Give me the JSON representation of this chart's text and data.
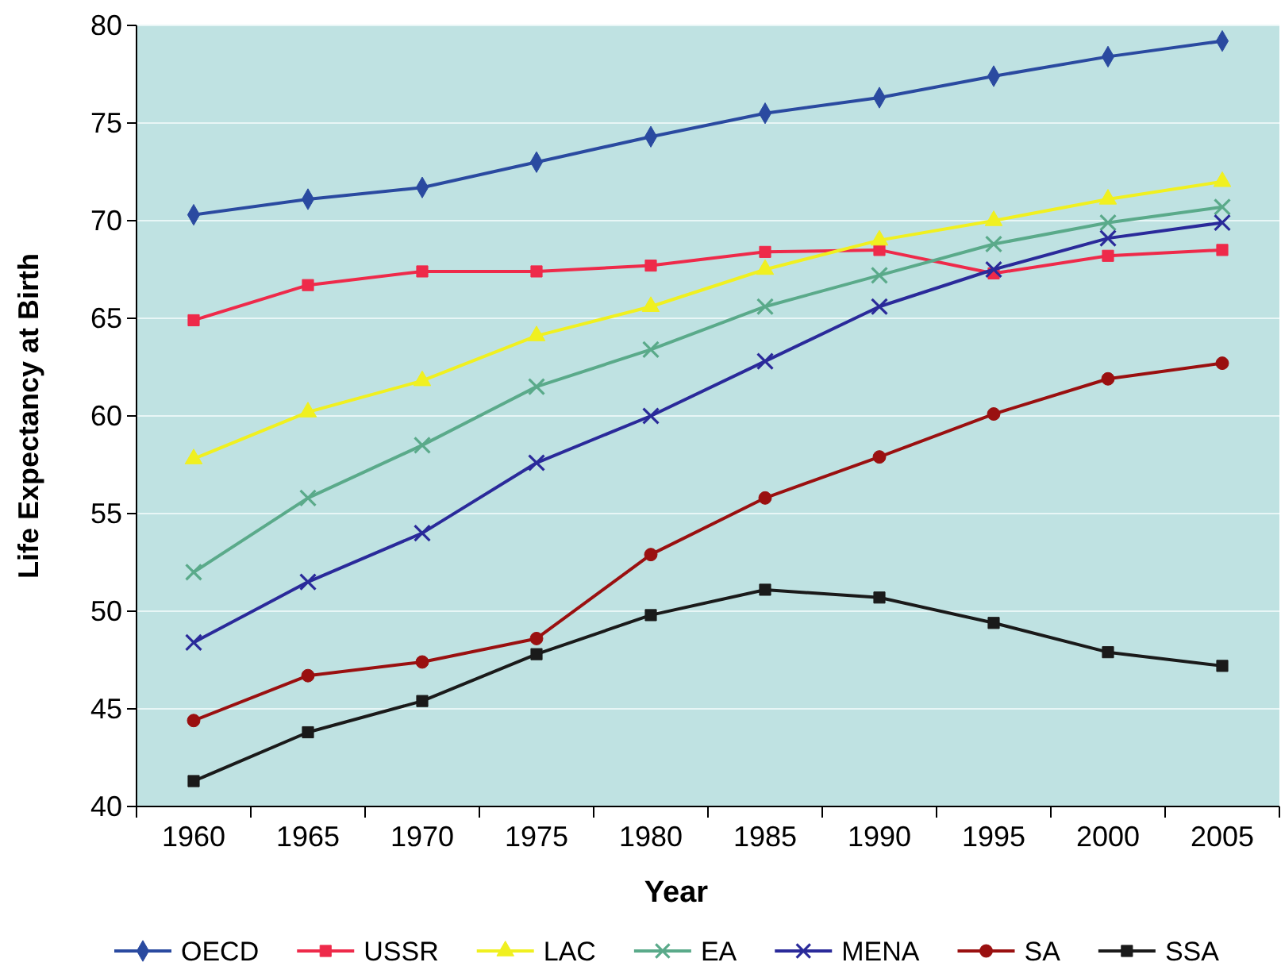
{
  "chart_data": {
    "type": "line",
    "xlabel": "Year",
    "ylabel": "Life Expectancy at Birth",
    "categories": [
      "1960",
      "1965",
      "1970",
      "1975",
      "1980",
      "1985",
      "1990",
      "1995",
      "2000",
      "2005"
    ],
    "ylim": [
      40,
      80
    ],
    "yticks": [
      40,
      45,
      50,
      55,
      60,
      65,
      70,
      75,
      80
    ],
    "grid": "y",
    "legend": "bottom",
    "series": [
      {
        "name": "OECD",
        "color": "#2a4aa0",
        "marker": "diamond",
        "values": [
          70.3,
          71.1,
          71.7,
          73.0,
          74.3,
          75.5,
          76.3,
          77.4,
          78.4,
          79.2
        ]
      },
      {
        "name": "USSR",
        "color": "#ee2a4a",
        "marker": "square",
        "values": [
          64.9,
          66.7,
          67.4,
          67.4,
          67.7,
          68.4,
          68.5,
          67.3,
          68.2,
          68.5
        ]
      },
      {
        "name": "LAC",
        "color": "#f0f020",
        "marker": "triangle",
        "values": [
          57.8,
          60.2,
          61.8,
          64.1,
          65.6,
          67.5,
          69.0,
          70.0,
          71.1,
          72.0
        ]
      },
      {
        "name": "EA",
        "color": "#5aaa8a",
        "marker": "cross",
        "values": [
          52.0,
          55.8,
          58.5,
          61.5,
          63.4,
          65.6,
          67.2,
          68.8,
          69.9,
          70.7
        ]
      },
      {
        "name": "MENA",
        "color": "#2a2a9a",
        "marker": "cross",
        "values": [
          48.4,
          51.5,
          54.0,
          57.6,
          60.0,
          62.8,
          65.6,
          67.5,
          69.1,
          69.9
        ]
      },
      {
        "name": "SA",
        "color": "#9a1010",
        "marker": "circle",
        "values": [
          44.4,
          46.7,
          47.4,
          48.6,
          52.9,
          55.8,
          57.9,
          60.1,
          61.9,
          62.7
        ]
      },
      {
        "name": "SSA",
        "color": "#1a1a1a",
        "marker": "square",
        "values": [
          41.3,
          43.8,
          45.4,
          47.8,
          49.8,
          51.1,
          50.7,
          49.4,
          47.9,
          47.2
        ]
      }
    ]
  }
}
